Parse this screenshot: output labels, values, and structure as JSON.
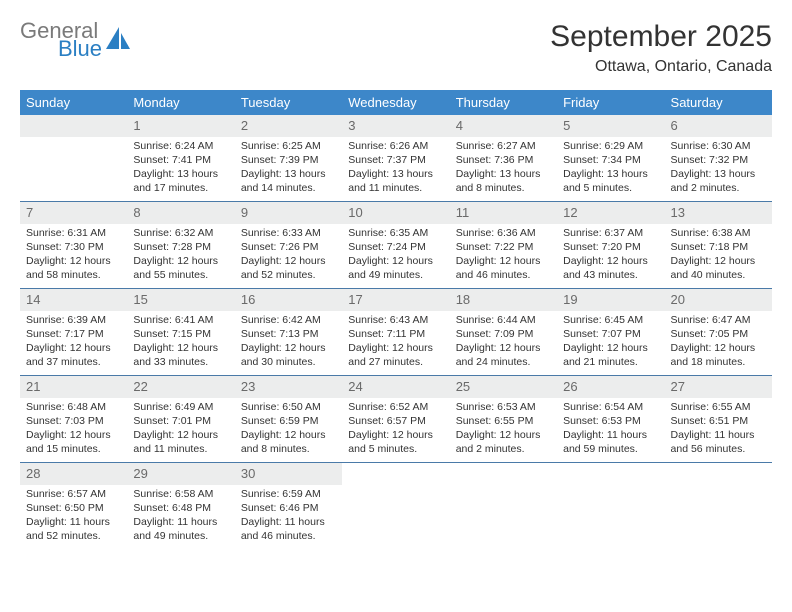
{
  "brand": {
    "general": "General",
    "blue": "Blue"
  },
  "title": "September 2025",
  "location": "Ottawa, Ontario, Canada",
  "colors": {
    "header_bg": "#3d87c9",
    "daynum_bg": "#eceded",
    "border": "#4a7aa8",
    "logo_icon": "#2b7fc3"
  },
  "weekdays": [
    "Sunday",
    "Monday",
    "Tuesday",
    "Wednesday",
    "Thursday",
    "Friday",
    "Saturday"
  ],
  "weeks": [
    [
      {
        "num": "",
        "sunrise": "",
        "sunset": "",
        "daylight": ""
      },
      {
        "num": "1",
        "sunrise": "Sunrise: 6:24 AM",
        "sunset": "Sunset: 7:41 PM",
        "daylight": "Daylight: 13 hours and 17 minutes."
      },
      {
        "num": "2",
        "sunrise": "Sunrise: 6:25 AM",
        "sunset": "Sunset: 7:39 PM",
        "daylight": "Daylight: 13 hours and 14 minutes."
      },
      {
        "num": "3",
        "sunrise": "Sunrise: 6:26 AM",
        "sunset": "Sunset: 7:37 PM",
        "daylight": "Daylight: 13 hours and 11 minutes."
      },
      {
        "num": "4",
        "sunrise": "Sunrise: 6:27 AM",
        "sunset": "Sunset: 7:36 PM",
        "daylight": "Daylight: 13 hours and 8 minutes."
      },
      {
        "num": "5",
        "sunrise": "Sunrise: 6:29 AM",
        "sunset": "Sunset: 7:34 PM",
        "daylight": "Daylight: 13 hours and 5 minutes."
      },
      {
        "num": "6",
        "sunrise": "Sunrise: 6:30 AM",
        "sunset": "Sunset: 7:32 PM",
        "daylight": "Daylight: 13 hours and 2 minutes."
      }
    ],
    [
      {
        "num": "7",
        "sunrise": "Sunrise: 6:31 AM",
        "sunset": "Sunset: 7:30 PM",
        "daylight": "Daylight: 12 hours and 58 minutes."
      },
      {
        "num": "8",
        "sunrise": "Sunrise: 6:32 AM",
        "sunset": "Sunset: 7:28 PM",
        "daylight": "Daylight: 12 hours and 55 minutes."
      },
      {
        "num": "9",
        "sunrise": "Sunrise: 6:33 AM",
        "sunset": "Sunset: 7:26 PM",
        "daylight": "Daylight: 12 hours and 52 minutes."
      },
      {
        "num": "10",
        "sunrise": "Sunrise: 6:35 AM",
        "sunset": "Sunset: 7:24 PM",
        "daylight": "Daylight: 12 hours and 49 minutes."
      },
      {
        "num": "11",
        "sunrise": "Sunrise: 6:36 AM",
        "sunset": "Sunset: 7:22 PM",
        "daylight": "Daylight: 12 hours and 46 minutes."
      },
      {
        "num": "12",
        "sunrise": "Sunrise: 6:37 AM",
        "sunset": "Sunset: 7:20 PM",
        "daylight": "Daylight: 12 hours and 43 minutes."
      },
      {
        "num": "13",
        "sunrise": "Sunrise: 6:38 AM",
        "sunset": "Sunset: 7:18 PM",
        "daylight": "Daylight: 12 hours and 40 minutes."
      }
    ],
    [
      {
        "num": "14",
        "sunrise": "Sunrise: 6:39 AM",
        "sunset": "Sunset: 7:17 PM",
        "daylight": "Daylight: 12 hours and 37 minutes."
      },
      {
        "num": "15",
        "sunrise": "Sunrise: 6:41 AM",
        "sunset": "Sunset: 7:15 PM",
        "daylight": "Daylight: 12 hours and 33 minutes."
      },
      {
        "num": "16",
        "sunrise": "Sunrise: 6:42 AM",
        "sunset": "Sunset: 7:13 PM",
        "daylight": "Daylight: 12 hours and 30 minutes."
      },
      {
        "num": "17",
        "sunrise": "Sunrise: 6:43 AM",
        "sunset": "Sunset: 7:11 PM",
        "daylight": "Daylight: 12 hours and 27 minutes."
      },
      {
        "num": "18",
        "sunrise": "Sunrise: 6:44 AM",
        "sunset": "Sunset: 7:09 PM",
        "daylight": "Daylight: 12 hours and 24 minutes."
      },
      {
        "num": "19",
        "sunrise": "Sunrise: 6:45 AM",
        "sunset": "Sunset: 7:07 PM",
        "daylight": "Daylight: 12 hours and 21 minutes."
      },
      {
        "num": "20",
        "sunrise": "Sunrise: 6:47 AM",
        "sunset": "Sunset: 7:05 PM",
        "daylight": "Daylight: 12 hours and 18 minutes."
      }
    ],
    [
      {
        "num": "21",
        "sunrise": "Sunrise: 6:48 AM",
        "sunset": "Sunset: 7:03 PM",
        "daylight": "Daylight: 12 hours and 15 minutes."
      },
      {
        "num": "22",
        "sunrise": "Sunrise: 6:49 AM",
        "sunset": "Sunset: 7:01 PM",
        "daylight": "Daylight: 12 hours and 11 minutes."
      },
      {
        "num": "23",
        "sunrise": "Sunrise: 6:50 AM",
        "sunset": "Sunset: 6:59 PM",
        "daylight": "Daylight: 12 hours and 8 minutes."
      },
      {
        "num": "24",
        "sunrise": "Sunrise: 6:52 AM",
        "sunset": "Sunset: 6:57 PM",
        "daylight": "Daylight: 12 hours and 5 minutes."
      },
      {
        "num": "25",
        "sunrise": "Sunrise: 6:53 AM",
        "sunset": "Sunset: 6:55 PM",
        "daylight": "Daylight: 12 hours and 2 minutes."
      },
      {
        "num": "26",
        "sunrise": "Sunrise: 6:54 AM",
        "sunset": "Sunset: 6:53 PM",
        "daylight": "Daylight: 11 hours and 59 minutes."
      },
      {
        "num": "27",
        "sunrise": "Sunrise: 6:55 AM",
        "sunset": "Sunset: 6:51 PM",
        "daylight": "Daylight: 11 hours and 56 minutes."
      }
    ],
    [
      {
        "num": "28",
        "sunrise": "Sunrise: 6:57 AM",
        "sunset": "Sunset: 6:50 PM",
        "daylight": "Daylight: 11 hours and 52 minutes."
      },
      {
        "num": "29",
        "sunrise": "Sunrise: 6:58 AM",
        "sunset": "Sunset: 6:48 PM",
        "daylight": "Daylight: 11 hours and 49 minutes."
      },
      {
        "num": "30",
        "sunrise": "Sunrise: 6:59 AM",
        "sunset": "Sunset: 6:46 PM",
        "daylight": "Daylight: 11 hours and 46 minutes."
      },
      {
        "num": "",
        "sunrise": "",
        "sunset": "",
        "daylight": ""
      },
      {
        "num": "",
        "sunrise": "",
        "sunset": "",
        "daylight": ""
      },
      {
        "num": "",
        "sunrise": "",
        "sunset": "",
        "daylight": ""
      },
      {
        "num": "",
        "sunrise": "",
        "sunset": "",
        "daylight": ""
      }
    ]
  ]
}
